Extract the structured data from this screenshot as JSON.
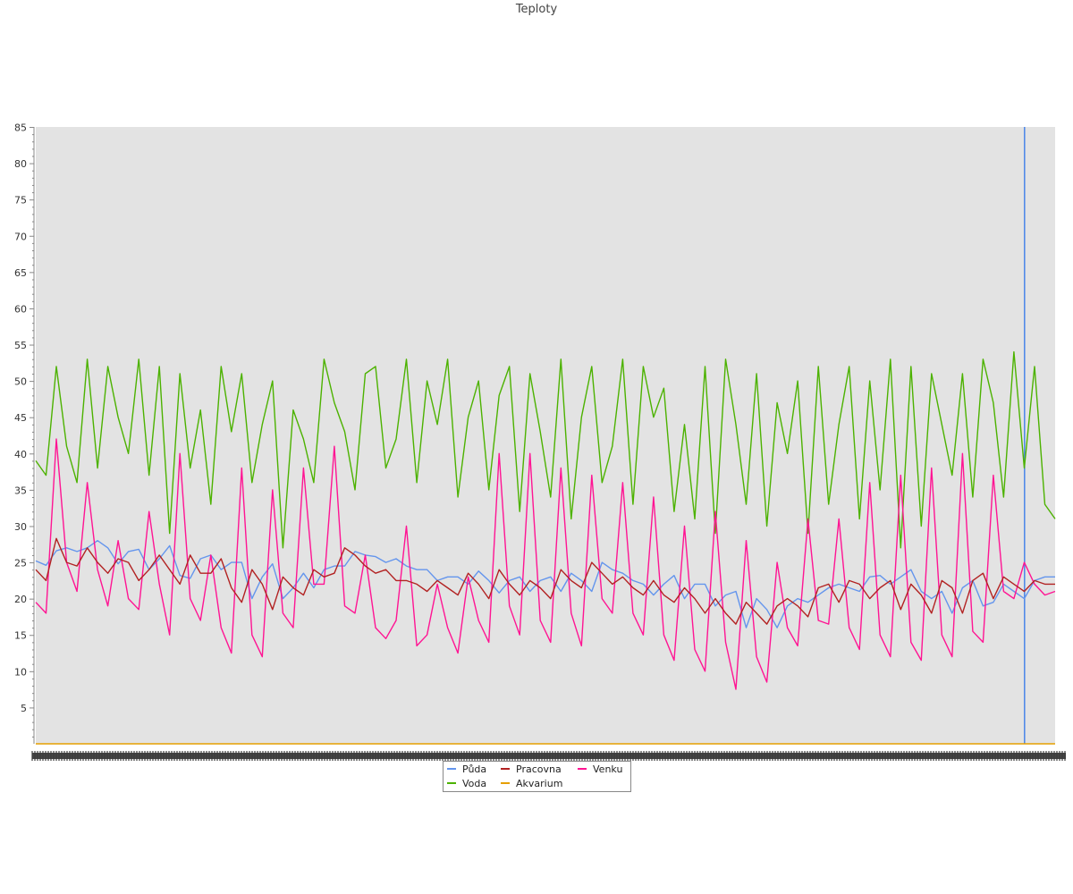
{
  "chart_data": {
    "type": "line",
    "title": "Teploty",
    "xlabel": "",
    "ylabel": "",
    "ylim": [
      0,
      85
    ],
    "yticks": [
      5,
      10,
      15,
      20,
      25,
      30,
      35,
      40,
      45,
      50,
      55,
      60,
      65,
      70,
      75,
      80,
      85
    ],
    "grid": false,
    "legend_position": "bottom-center",
    "x_tick_labels_visible": false,
    "series": [
      {
        "name": "Půda",
        "color": "#6495ED",
        "values": [
          25.2,
          24.6,
          26.6,
          27.0,
          26.5,
          27.0,
          28.0,
          27.0,
          24.8,
          26.5,
          26.8,
          24.0,
          25.5,
          27.3,
          23.2,
          22.8,
          25.5,
          26.0,
          24.0,
          25.0,
          25.0,
          20.0,
          23.0,
          24.8,
          20.0,
          21.5,
          23.5,
          21.5,
          24.0,
          24.5,
          24.5,
          26.5,
          26.0,
          25.8,
          25.0,
          25.5,
          24.5,
          24.0,
          24.0,
          22.5,
          23.0,
          23.0,
          22.0,
          23.8,
          22.5,
          20.8,
          22.5,
          23.0,
          21.0,
          22.5,
          23.0,
          21.0,
          23.5,
          22.5,
          21.0,
          25.0,
          24.0,
          23.5,
          22.5,
          22.0,
          20.5,
          22.0,
          23.2,
          20.0,
          22.0,
          22.0,
          19.0,
          20.5,
          21.0,
          16.0,
          20.0,
          18.5,
          16.0,
          19.0,
          20.0,
          19.5,
          20.5,
          21.5,
          22.0,
          21.5,
          21.0,
          23.0,
          23.2,
          22.0,
          23.0,
          24.0,
          21.0,
          20.0,
          21.0,
          18.0,
          21.5,
          22.5,
          19.0,
          19.5,
          22.0,
          21.0,
          20.0,
          22.5,
          23.0,
          23.0
        ]
      },
      {
        "name": "Voda",
        "color": "#4cb200",
        "values": [
          39,
          37,
          52,
          41,
          36,
          53,
          38,
          52,
          45,
          40,
          53,
          37,
          52,
          29,
          51,
          38,
          46,
          33,
          52,
          43,
          51,
          36,
          44,
          50,
          27,
          46,
          42,
          36,
          53,
          47,
          43,
          35,
          51,
          52,
          38,
          42,
          53,
          36,
          50,
          44,
          53,
          34,
          45,
          50,
          35,
          48,
          52,
          32,
          51,
          43,
          34,
          53,
          31,
          45,
          52,
          36,
          41,
          53,
          33,
          52,
          45,
          49,
          32,
          44,
          31,
          52,
          29,
          53,
          44,
          33,
          51,
          30,
          47,
          40,
          50,
          29,
          52,
          33,
          44,
          52,
          31,
          50,
          35,
          53,
          27,
          52,
          30,
          51,
          44,
          37,
          51,
          34,
          53,
          47,
          34,
          54,
          38,
          52,
          33,
          31
        ]
      },
      {
        "name": "Pracovna",
        "color": "#b22222",
        "values": [
          24.0,
          22.5,
          28.3,
          25.0,
          24.5,
          27.0,
          25.0,
          23.5,
          25.5,
          25.0,
          22.5,
          24.0,
          26.0,
          24.0,
          22.0,
          26.0,
          23.5,
          23.5,
          25.5,
          21.5,
          19.5,
          24.0,
          22.0,
          18.5,
          23.0,
          21.5,
          20.5,
          24.0,
          23.0,
          23.5,
          27.0,
          26.0,
          24.5,
          23.5,
          24.0,
          22.5,
          22.5,
          22.0,
          21.0,
          22.5,
          21.5,
          20.5,
          23.5,
          22.0,
          20.0,
          24.0,
          22.0,
          20.5,
          22.5,
          21.5,
          20.0,
          24.0,
          22.5,
          21.5,
          25.0,
          23.5,
          22.0,
          23.0,
          21.5,
          20.5,
          22.5,
          20.5,
          19.5,
          21.5,
          20.0,
          18.0,
          20.0,
          18.0,
          16.5,
          19.5,
          18.0,
          16.5,
          19.0,
          20.0,
          19.0,
          17.5,
          21.5,
          22.0,
          19.5,
          22.5,
          22.0,
          20.0,
          21.5,
          22.5,
          18.5,
          22.0,
          20.5,
          18.0,
          22.5,
          21.5,
          18.0,
          22.5,
          23.5,
          20.0,
          23.0,
          22.0,
          21.0,
          22.5,
          22.0,
          22.0
        ]
      },
      {
        "name": "Venku",
        "color": "#ff1493",
        "values": [
          19.5,
          18.0,
          42.0,
          25.0,
          21.0,
          36.0,
          24.0,
          19.0,
          28.0,
          20.0,
          18.5,
          32.0,
          22.0,
          15.0,
          40.0,
          20.0,
          17.0,
          26.0,
          16.0,
          12.5,
          38.0,
          15.0,
          12.0,
          35.0,
          18.0,
          16.0,
          38.0,
          22.0,
          22.0,
          41.0,
          19.0,
          18.0,
          26.0,
          16.0,
          14.5,
          17.0,
          30.0,
          13.5,
          15.0,
          22.0,
          16.0,
          12.5,
          23.0,
          17.0,
          14.0,
          40.0,
          19.0,
          15.0,
          40.0,
          17.0,
          14.0,
          38.0,
          18.0,
          13.5,
          37.0,
          20.0,
          18.0,
          36.0,
          18.0,
          15.0,
          34.0,
          15.0,
          11.5,
          30.0,
          13.0,
          10.0,
          32.0,
          14.0,
          7.5,
          28.0,
          12.0,
          8.5,
          25.0,
          16.0,
          13.5,
          31.0,
          17.0,
          16.5,
          31.0,
          16.0,
          13.0,
          36.0,
          15.0,
          12.0,
          37.0,
          14.0,
          11.5,
          38.0,
          15.0,
          12.0,
          40.0,
          15.5,
          14.0,
          37.0,
          21.0,
          20.0,
          25.0,
          22.0,
          20.5,
          21.0
        ]
      },
      {
        "name": "Akvarium",
        "color": "#e69f00",
        "values": [
          0,
          0,
          0,
          0,
          0,
          0,
          0,
          0,
          0,
          0,
          0,
          0,
          0,
          0,
          0,
          0,
          0,
          0,
          0,
          0,
          0,
          0,
          0,
          0,
          0,
          0,
          0,
          0,
          0,
          0,
          0,
          0,
          0,
          0,
          0,
          0,
          0,
          0,
          0,
          0,
          0,
          0,
          0,
          0,
          0,
          0,
          0,
          0,
          0,
          0,
          0,
          0,
          0,
          0,
          0,
          0,
          0,
          0,
          0,
          0,
          0,
          0,
          0,
          0,
          0,
          0,
          0,
          0,
          0,
          0,
          0,
          0,
          0,
          0,
          0,
          0,
          0,
          0,
          0,
          0,
          0,
          0,
          0,
          0,
          0,
          0,
          0,
          0,
          0,
          0,
          0,
          0,
          0,
          0,
          0,
          0,
          0,
          0,
          0,
          0
        ]
      }
    ],
    "marker_line": {
      "color": "#4a86e8",
      "position_fraction": 0.97
    },
    "legend_layout": [
      [
        "Půda",
        "Pracovna",
        "Venku"
      ],
      [
        "Voda",
        "Akvarium"
      ]
    ]
  }
}
